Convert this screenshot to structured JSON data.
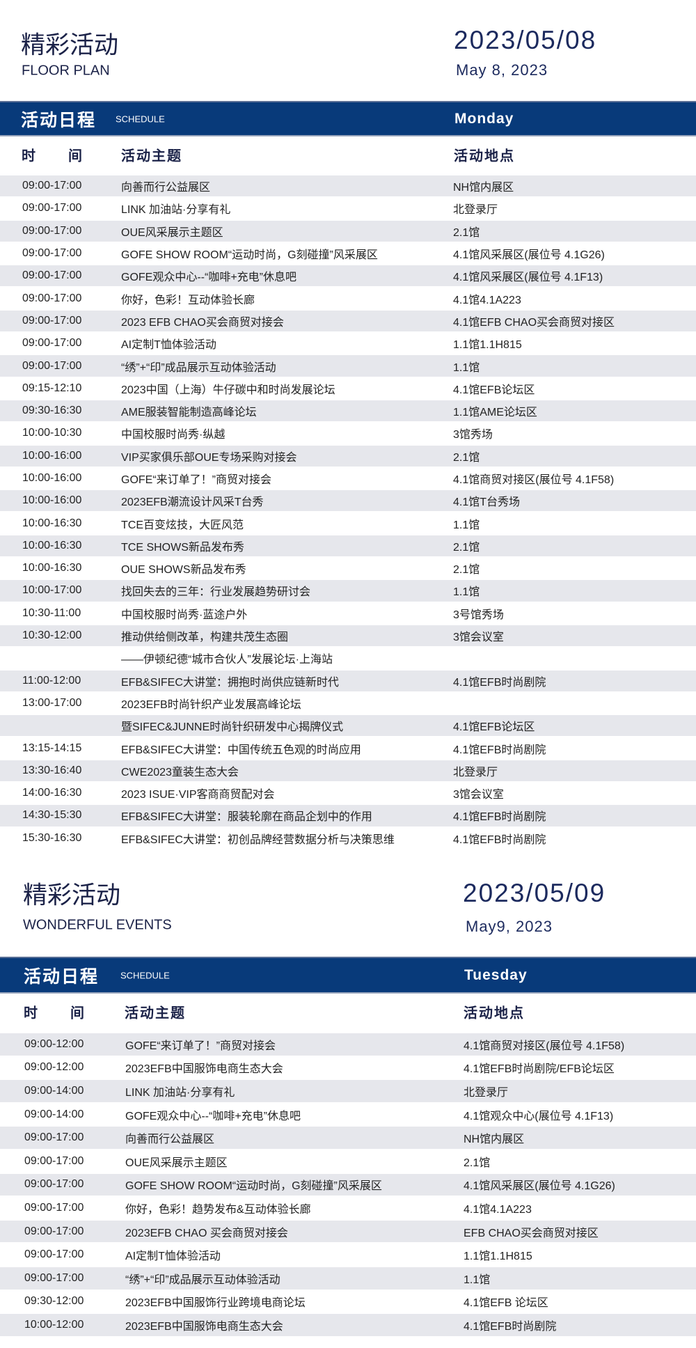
{
  "section1": {
    "title": "精彩活动",
    "subtitle": "FLOOR PLAN",
    "date": "2023/05/08",
    "date_text": "May 8, 2023",
    "band": {
      "title": "活动日程",
      "subtitle": "SCHEDULE",
      "weekday": "Monday"
    },
    "columns": {
      "time_a": "时",
      "time_b": "间",
      "topic": "活动主题",
      "location": "活动地点"
    },
    "rows": [
      [
        "09:00-17:00",
        "向善而行公益展区",
        "NH馆内展区"
      ],
      [
        "09:00-17:00",
        "LINK 加油站·分享有礼",
        "北登录厅"
      ],
      [
        "09:00-17:00",
        "OUE风采展示主题区",
        "2.1馆"
      ],
      [
        "09:00-17:00",
        "GOFE SHOW ROOM“运动时尚，G刻碰撞”风采展区",
        "4.1馆风采展区(展位号 4.1G26)"
      ],
      [
        "09:00-17:00",
        "GOFE观众中心--“咖啡+充电”休息吧",
        "4.1馆风采展区(展位号 4.1F13)"
      ],
      [
        "09:00-17:00",
        "你好，色彩！互动体验长廊",
        "4.1馆4.1A223"
      ],
      [
        "09:00-17:00",
        "2023 EFB CHAO买会商贸对接会",
        "4.1馆EFB CHAO买会商贸对接区"
      ],
      [
        "09:00-17:00",
        "AI定制T恤体验活动",
        "1.1馆1.1H815"
      ],
      [
        "09:00-17:00",
        "“绣”+“印”成品展示互动体验活动",
        "1.1馆"
      ],
      [
        "09:15-12:10",
        "2023中国（上海）牛仔碳中和时尚发展论坛",
        "4.1馆EFB论坛区"
      ],
      [
        "09:30-16:30",
        "AME服装智能制造高峰论坛",
        "1.1馆AME论坛区"
      ],
      [
        "10:00-10:30",
        "中国校服时尚秀·纵越",
        "3馆秀场"
      ],
      [
        "10:00-16:00",
        "VIP买家俱乐部OUE专场采购对接会",
        "2.1馆"
      ],
      [
        "10:00-16:00",
        "GOFE“来订单了！”商贸对接会",
        "4.1馆商贸对接区(展位号 4.1F58)"
      ],
      [
        "10:00-16:00",
        "2023EFB潮流设计风采T台秀",
        "4.1馆T台秀场"
      ],
      [
        "10:00-16:30",
        "TCE百变炫技，大匠风范",
        "1.1馆"
      ],
      [
        "10:00-16:30",
        "TCE SHOWS新品发布秀",
        "2.1馆"
      ],
      [
        "10:00-16:30",
        "OUE SHOWS新品发布秀",
        "2.1馆"
      ],
      [
        "10:00-17:00",
        "找回失去的三年：行业发展趋势研讨会",
        "1.1馆"
      ],
      [
        "10:30-11:00",
        "中国校服时尚秀·蓝途户外",
        "3号馆秀场"
      ],
      [
        "10:30-12:00",
        "推动供给侧改革，构建共茂生态圈",
        "3馆会议室"
      ],
      [
        "",
        "——伊顿纪德“城市合伙人”发展论坛·上海站",
        ""
      ],
      [
        "11:00-12:00",
        "EFB&SIFEC大讲堂：拥抱时尚供应链新时代",
        "4.1馆EFB时尚剧院"
      ],
      [
        "13:00-17:00",
        "2023EFB时尚针织产业发展高峰论坛",
        ""
      ],
      [
        "",
        "暨SIFEC&JUNNE时尚针织研发中心揭牌仪式",
        "4.1馆EFB论坛区"
      ],
      [
        "13:15-14:15",
        "EFB&SIFEC大讲堂：中国传统五色观的时尚应用",
        "4.1馆EFB时尚剧院"
      ],
      [
        "13:30-16:40",
        "CWE2023童装生态大会",
        "北登录厅"
      ],
      [
        "14:00-16:30",
        "2023 ISUE·VIP客商商贸配对会",
        "3馆会议室"
      ],
      [
        "14:30-15:30",
        "EFB&SIFEC大讲堂：服装轮廓在商品企划中的作用",
        "4.1馆EFB时尚剧院"
      ],
      [
        "15:30-16:30",
        "EFB&SIFEC大讲堂：初创品牌经营数据分析与决策思维",
        "4.1馆EFB时尚剧院"
      ]
    ]
  },
  "section2": {
    "title": "精彩活动",
    "subtitle": "WONDERFUL EVENTS",
    "date": "2023/05/09",
    "date_text": "May9, 2023",
    "band": {
      "title": "活动日程",
      "subtitle": "SCHEDULE",
      "weekday": "Tuesday"
    },
    "columns": {
      "time_a": "时",
      "time_b": "间",
      "topic": "活动主题",
      "location": "活动地点"
    },
    "rows": [
      [
        "09:00-12:00",
        "GOFE“来订单了！”商贸对接会",
        "4.1馆商贸对接区(展位号 4.1F58)"
      ],
      [
        "09:00-12:00",
        "2023EFB中国服饰电商生态大会",
        "4.1馆EFB时尚剧院/EFB论坛区"
      ],
      [
        "09:00-14:00",
        "LINK 加油站·分享有礼",
        "北登录厅"
      ],
      [
        "09:00-14:00",
        "GOFE观众中心--“咖啡+充电”休息吧",
        "4.1馆观众中心(展位号 4.1F13)"
      ],
      [
        "09:00-17:00",
        "向善而行公益展区",
        "NH馆内展区"
      ],
      [
        "09:00-17:00",
        "OUE风采展示主题区",
        "2.1馆"
      ],
      [
        "09:00-17:00",
        "GOFE SHOW ROOM“运动时尚，G刻碰撞”风采展区",
        "4.1馆风采展区(展位号 4.1G26)"
      ],
      [
        "09:00-17:00",
        "你好，色彩！趋势发布&互动体验长廊",
        "4.1馆4.1A223"
      ],
      [
        "09:00-17:00",
        "2023EFB CHAO 买会商贸对接会",
        "EFB CHAO买会商贸对接区"
      ],
      [
        "09:00-17:00",
        "AI定制T恤体验活动",
        "1.1馆1.1H815"
      ],
      [
        "09:00-17:00",
        "“绣”+“印”成品展示互动体验活动",
        "1.1馆"
      ],
      [
        "09:30-12:00",
        "2023EFB中国服饰行业跨境电商论坛",
        "4.1馆EFB 论坛区"
      ],
      [
        "10:00-12:00",
        "2023EFB中国服饰电商生态大会",
        "4.1馆EFB时尚剧院"
      ]
    ]
  },
  "colors": {
    "band": "#083a7a",
    "title": "#1b2248",
    "row_stripe": "#e6e7ec"
  }
}
